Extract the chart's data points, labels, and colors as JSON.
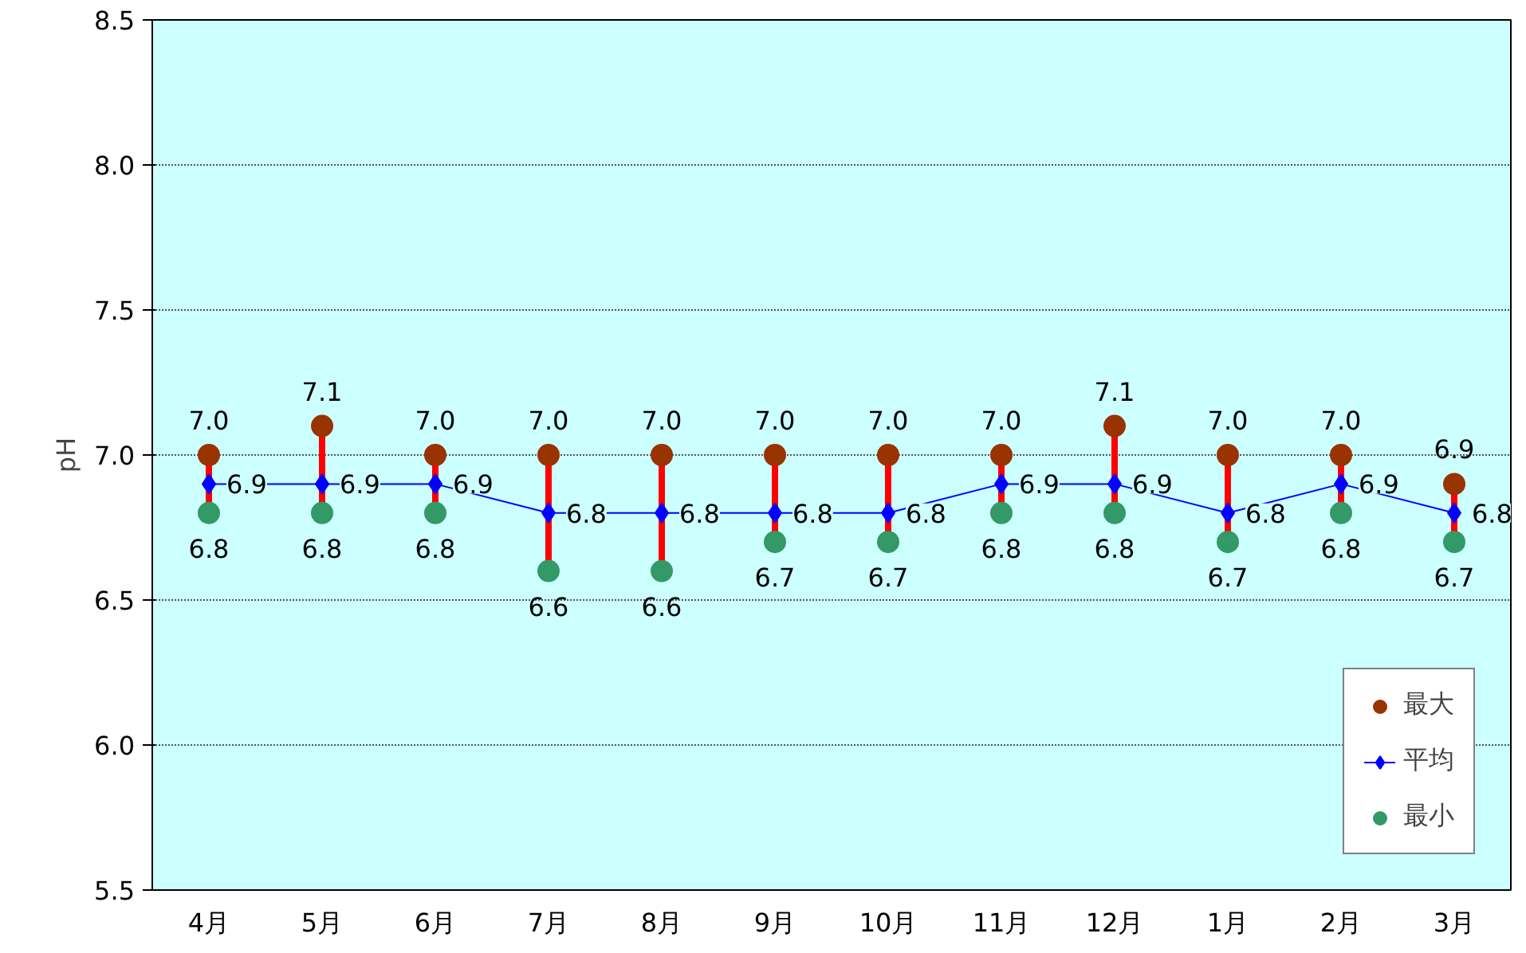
{
  "chart_data": {
    "type": "scatter",
    "ylabel": "pH",
    "categories": [
      "4月",
      "5月",
      "6月",
      "7月",
      "8月",
      "9月",
      "10月",
      "11月",
      "12月",
      "1月",
      "2月",
      "3月"
    ],
    "series": [
      {
        "name": "最大",
        "color": "#993300",
        "marker": "circle",
        "values": [
          7.0,
          7.1,
          7.0,
          7.0,
          7.0,
          7.0,
          7.0,
          7.0,
          7.1,
          7.0,
          7.0,
          6.9
        ],
        "value_labels": [
          "7.0",
          "7.1",
          "7.0",
          "7.0",
          "7.0",
          "7.0",
          "7.0",
          "7.0",
          "7.1",
          "7.0",
          "7.0",
          "6.9"
        ]
      },
      {
        "type": "line",
        "name": "平均",
        "color": "#0000ff",
        "marker": "diamond",
        "values": [
          6.9,
          6.9,
          6.9,
          6.8,
          6.8,
          6.8,
          6.8,
          6.9,
          6.9,
          6.8,
          6.9,
          6.8
        ],
        "value_labels": [
          "6.9",
          "6.9",
          "6.9",
          "6.8",
          "6.8",
          "6.8",
          "6.8",
          "6.9",
          "6.9",
          "6.8",
          "6.9",
          "6.8"
        ]
      },
      {
        "name": "最小",
        "color": "#339966",
        "marker": "circle",
        "values": [
          6.8,
          6.8,
          6.8,
          6.6,
          6.6,
          6.7,
          6.7,
          6.8,
          6.8,
          6.7,
          6.8,
          6.7
        ],
        "value_labels": [
          "6.8",
          "6.8",
          "6.8",
          "6.6",
          "6.6",
          "6.7",
          "6.7",
          "6.8",
          "6.8",
          "6.7",
          "6.8",
          "6.7"
        ]
      }
    ],
    "ylim": [
      5.5,
      8.5
    ],
    "yticks": [
      {
        "value": 5.5,
        "label": "5.5"
      },
      {
        "value": 6,
        "label": "6.0"
      },
      {
        "value": 6.5,
        "label": "6.5"
      },
      {
        "value": 7,
        "label": "7.0"
      },
      {
        "value": 7.5,
        "label": "7.5"
      },
      {
        "value": 8,
        "label": "8.0"
      },
      {
        "value": 8.5,
        "label": "8.5"
      }
    ],
    "grid": "y",
    "legend": "bottom right"
  }
}
